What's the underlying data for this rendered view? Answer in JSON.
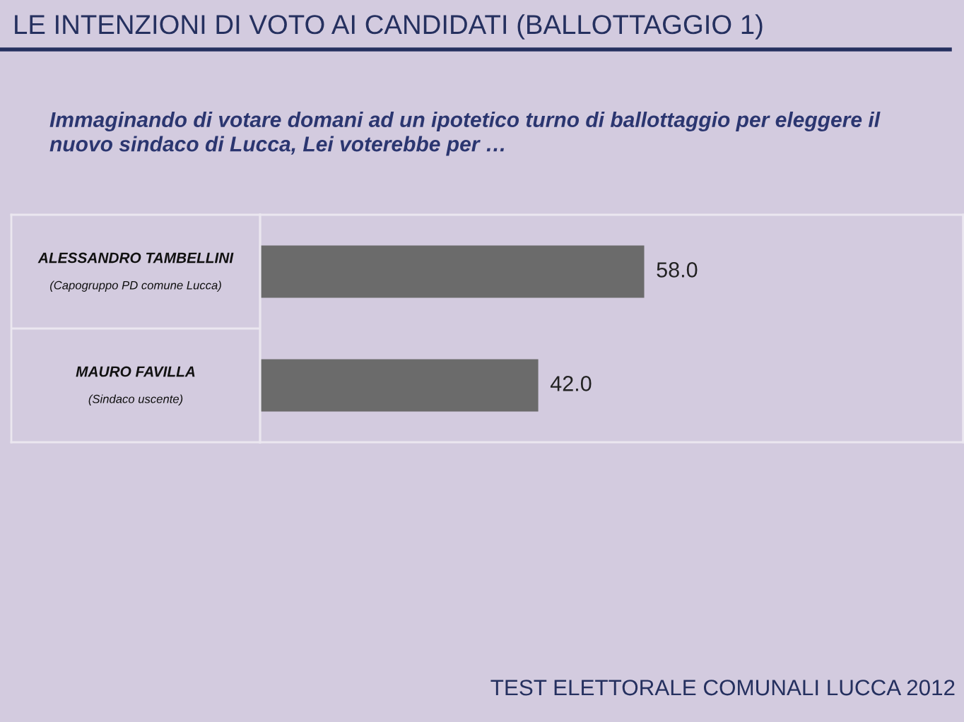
{
  "chart_data": {
    "type": "bar",
    "orientation": "horizontal",
    "title": "LE INTENZIONI DI VOTO AI CANDIDATI (BALLOTTAGGIO 1)",
    "subtitle": "Immaginando di votare domani ad un ipotetico turno di ballottaggio per eleggere il\nnuovo sindaco di Lucca, Lei voterebbe per …",
    "categories": [
      "ALESSANDRO TAMBELLINI\n(Capogruppo PD comune Lucca)",
      "MAURO FAVILLA\n(Sindaco uscente)"
    ],
    "values": [
      58.0,
      42.0
    ],
    "value_labels": [
      "58.0",
      "42.0"
    ],
    "color": "#6b6b6b",
    "tick_labels": "y",
    "annotations": [
      "TEST ELETTORALE COMUNALI LUCCA 2012"
    ]
  }
}
